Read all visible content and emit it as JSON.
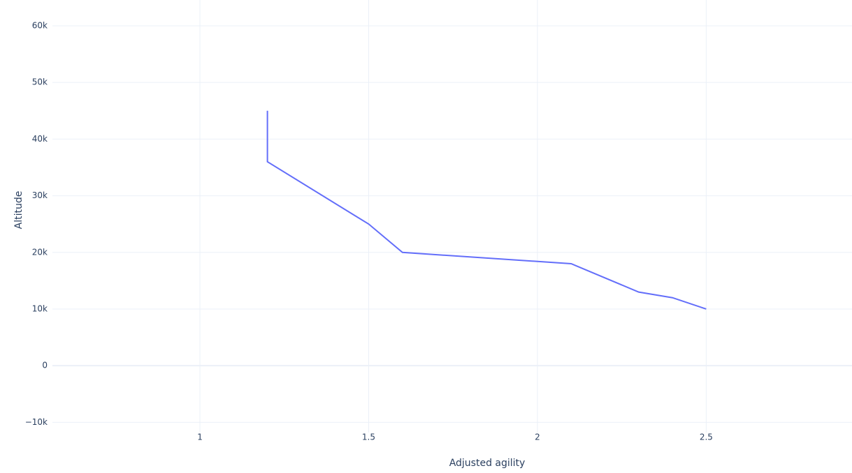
{
  "chart_data": {
    "type": "line",
    "x_label": "Adjusted agility",
    "y_label": "Altitude",
    "x": [
      1.2,
      1.2,
      1.5,
      1.6,
      2.1,
      2.3,
      2.4,
      2.5
    ],
    "series": [
      {
        "color": "#636efa",
        "values": [
          45000,
          36000,
          25000,
          20000,
          18000,
          13000,
          12000,
          10000
        ]
      }
    ],
    "xlim": [
      0.563,
      2.932
    ],
    "xticks": [
      1,
      1.5,
      2,
      2.5
    ],
    "ylim": [
      -11800,
      64550
    ],
    "yticks": [
      {
        "value": -10000,
        "label": "−10k"
      },
      0,
      {
        "value": 10000,
        "label": "10k"
      },
      {
        "value": 20000,
        "label": "20k"
      },
      {
        "value": 30000,
        "label": "30k"
      },
      {
        "value": 40000,
        "label": "40k"
      },
      {
        "value": 50000,
        "label": "50k"
      },
      {
        "value": 60000,
        "label": "60k"
      }
    ],
    "grid": true
  }
}
